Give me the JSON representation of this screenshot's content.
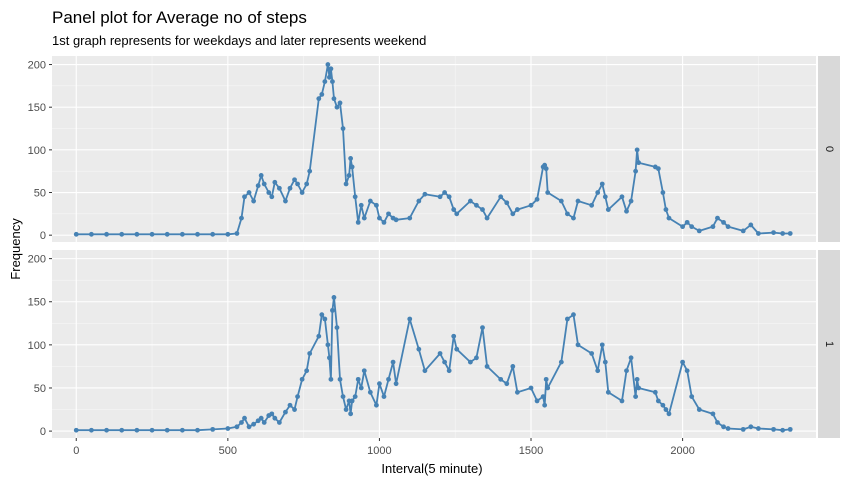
{
  "chart_data": {
    "type": "line",
    "title": "Panel plot for Average no of steps",
    "subtitle": "1st graph represents for weekdays and later represents weekend",
    "xlabel": "Interval(5 minute)",
    "ylabel": "Frequency",
    "xlim": [
      -80,
      2440
    ],
    "ylim": [
      -8,
      210
    ],
    "xticks": [
      0,
      500,
      1000,
      1500,
      2000
    ],
    "yticks": [
      0,
      50,
      100,
      150,
      200
    ],
    "grid": true,
    "color": "#4682B4",
    "panels": [
      {
        "strip_label": "0",
        "x": [
          0,
          50,
          100,
          150,
          200,
          250,
          300,
          350,
          400,
          450,
          500,
          530,
          545,
          555,
          570,
          585,
          600,
          610,
          620,
          635,
          645,
          655,
          670,
          690,
          705,
          720,
          730,
          745,
          760,
          770,
          800,
          810,
          820,
          830,
          835,
          840,
          845,
          850,
          860,
          870,
          880,
          890,
          900,
          905,
          910,
          920,
          930,
          940,
          950,
          970,
          990,
          1000,
          1015,
          1030,
          1045,
          1055,
          1100,
          1130,
          1150,
          1200,
          1215,
          1230,
          1245,
          1255,
          1300,
          1320,
          1340,
          1355,
          1400,
          1420,
          1440,
          1455,
          1500,
          1520,
          1540,
          1545,
          1550,
          1555,
          1600,
          1620,
          1640,
          1655,
          1700,
          1720,
          1735,
          1745,
          1755,
          1800,
          1815,
          1830,
          1845,
          1850,
          1855,
          1910,
          1920,
          1935,
          1945,
          1955,
          2000,
          2015,
          2030,
          2055,
          2100,
          2115,
          2135,
          2150,
          2200,
          2225,
          2250,
          2300,
          2330,
          2355
        ],
        "y": [
          1,
          1,
          1,
          1,
          1,
          1,
          1,
          1,
          1,
          1,
          1,
          2,
          20,
          45,
          50,
          40,
          58,
          70,
          60,
          50,
          45,
          62,
          55,
          40,
          55,
          65,
          60,
          50,
          60,
          75,
          160,
          165,
          180,
          200,
          185,
          195,
          180,
          160,
          150,
          155,
          125,
          60,
          70,
          90,
          80,
          45,
          15,
          35,
          20,
          40,
          35,
          20,
          15,
          25,
          20,
          18,
          20,
          40,
          48,
          45,
          50,
          45,
          30,
          25,
          40,
          35,
          30,
          20,
          45,
          38,
          25,
          30,
          35,
          42,
          80,
          82,
          78,
          50,
          40,
          25,
          20,
          40,
          35,
          50,
          60,
          45,
          30,
          45,
          28,
          40,
          75,
          100,
          85,
          80,
          78,
          50,
          30,
          20,
          10,
          15,
          10,
          5,
          10,
          20,
          15,
          10,
          5,
          12,
          2,
          3,
          2,
          2
        ]
      },
      {
        "strip_label": "1",
        "x": [
          0,
          50,
          100,
          150,
          200,
          250,
          300,
          350,
          400,
          450,
          500,
          530,
          545,
          555,
          570,
          585,
          600,
          610,
          620,
          635,
          645,
          655,
          670,
          690,
          705,
          720,
          730,
          745,
          760,
          770,
          800,
          810,
          820,
          830,
          835,
          840,
          845,
          850,
          860,
          870,
          880,
          890,
          900,
          905,
          910,
          920,
          930,
          940,
          950,
          970,
          990,
          1000,
          1015,
          1030,
          1045,
          1055,
          1100,
          1130,
          1150,
          1200,
          1215,
          1230,
          1245,
          1255,
          1300,
          1320,
          1340,
          1355,
          1400,
          1420,
          1440,
          1455,
          1500,
          1520,
          1540,
          1545,
          1550,
          1555,
          1600,
          1620,
          1640,
          1655,
          1700,
          1720,
          1735,
          1745,
          1755,
          1800,
          1815,
          1830,
          1845,
          1850,
          1855,
          1910,
          1920,
          1935,
          1945,
          1955,
          2000,
          2015,
          2030,
          2055,
          2100,
          2115,
          2135,
          2150,
          2200,
          2225,
          2250,
          2300,
          2330,
          2355
        ],
        "y": [
          1,
          1,
          1,
          1,
          1,
          1,
          1,
          1,
          1,
          2,
          3,
          5,
          10,
          15,
          5,
          8,
          12,
          15,
          10,
          18,
          20,
          15,
          10,
          22,
          30,
          25,
          40,
          60,
          70,
          90,
          110,
          135,
          130,
          100,
          85,
          60,
          140,
          155,
          120,
          60,
          40,
          25,
          35,
          20,
          35,
          40,
          60,
          50,
          70,
          45,
          30,
          55,
          40,
          60,
          80,
          55,
          130,
          95,
          70,
          90,
          80,
          70,
          110,
          95,
          80,
          85,
          120,
          75,
          60,
          55,
          75,
          45,
          50,
          35,
          40,
          30,
          60,
          50,
          80,
          130,
          135,
          100,
          90,
          70,
          100,
          80,
          45,
          35,
          70,
          85,
          40,
          60,
          50,
          45,
          35,
          30,
          25,
          20,
          80,
          70,
          40,
          25,
          20,
          10,
          5,
          3,
          2,
          5,
          3,
          2,
          1,
          2
        ]
      }
    ]
  }
}
